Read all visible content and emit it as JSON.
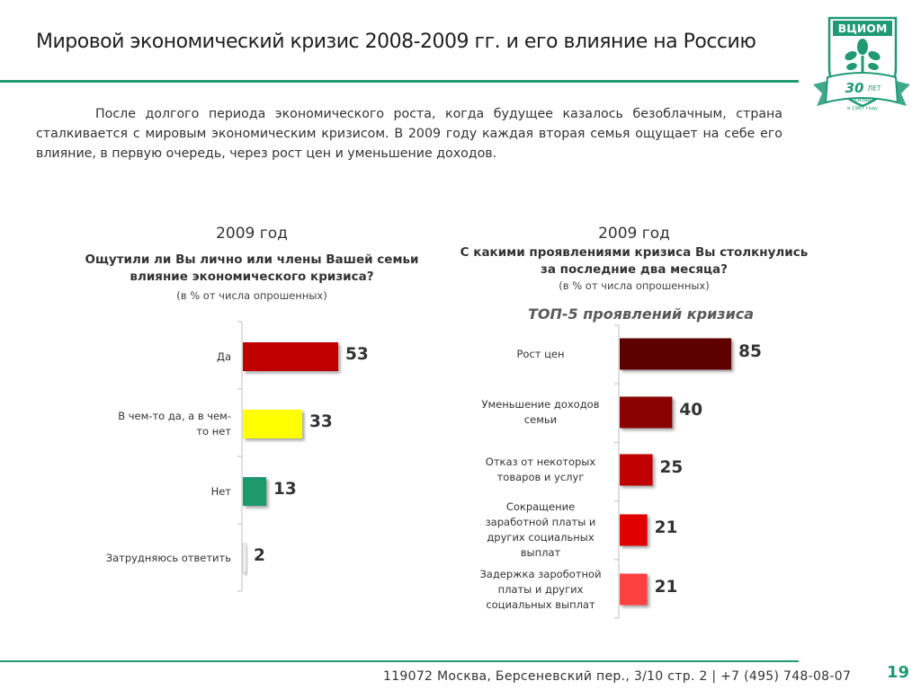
{
  "header": {
    "title": "Мировой экономический кризис 2008-2009 гг. и его влияние на Россию",
    "logo_text": "ВЦИОМ",
    "logo_years": "30",
    "logo_years_suffix": "ЛЕТ",
    "logo_founded": "Основан",
    "logo_founded_year": "в 1987 году"
  },
  "intro": "После долгого периода экономического роста, когда будущее казалось безоблачным, страна сталкивается с мировым экономическим кризисом. В 2009 году каждая вторая семья ощущает на себе его влияние, в первую очередь, через рост цен и уменьшение доходов.",
  "colors": {
    "accent": "#1f9a73",
    "left_bars": [
      "#c00000",
      "#ffff00",
      "#1a9a6e",
      "#f2f2f2"
    ],
    "right_bars": [
      "#5c0000",
      "#8b0000",
      "#c00000",
      "#e00000",
      "#ff3f3f"
    ]
  },
  "chart_data": [
    {
      "type": "bar",
      "orientation": "horizontal",
      "year": "2009 год",
      "title_line1": "Ощутили ли Вы лично или члены Вашей семьи",
      "title_line2": "влияние экономического кризиса?",
      "note": "(в % от числа опрошенных)",
      "categories": [
        "Да",
        "В чем-то да, а в чем-то нет",
        "Нет",
        "Затрудняюсь ответить"
      ],
      "category_lines": [
        [
          "Да"
        ],
        [
          "В чем-то да, а в чем-",
          "то нет"
        ],
        [
          "Нет"
        ],
        [
          "Затрудняюсь ответить"
        ]
      ],
      "values": [
        53,
        33,
        13,
        2
      ],
      "xlim": [
        0,
        100
      ]
    },
    {
      "type": "bar",
      "orientation": "horizontal",
      "year": "2009 год",
      "title_line1": "С какими проявлениями кризиса Вы столкнулись",
      "title_line2": "за последние два месяца?",
      "note": "(в % от числа опрошенных)",
      "subtitle": "ТОП-5 проявлений кризиса",
      "categories": [
        "Рост цен",
        "Уменьшение доходов семьи",
        "Отказ от некоторых товаров и услуг",
        "Сокращение заработной платы и других социальных выплат",
        "Задержка зароботной платы и других социальных выплат"
      ],
      "category_lines": [
        [
          "Рост цен"
        ],
        [
          "Уменьшение доходов",
          "семьи"
        ],
        [
          "Отказ от некоторых",
          "товаров и услуг"
        ],
        [
          "Сокращение",
          "заработной платы и",
          "других социальных",
          "выплат"
        ],
        [
          "Задержка зароботной",
          "платы и других",
          "социальных выплат"
        ]
      ],
      "values": [
        85,
        40,
        25,
        21,
        21
      ],
      "xlim": [
        0,
        100
      ]
    }
  ],
  "footer": {
    "address": "119072 Москва, Берсеневский пер., 3/10 стр. 2  |  +7 (495) 748-08-07",
    "page_number": "19"
  }
}
